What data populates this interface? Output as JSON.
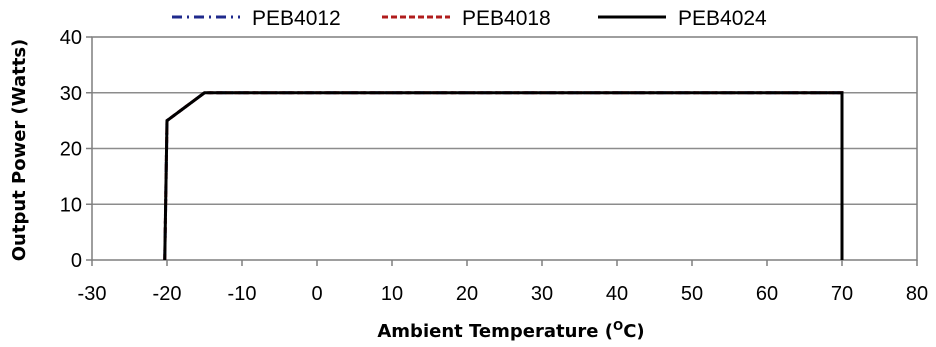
{
  "chart_data": {
    "type": "line",
    "xlabel": "Ambient Temperature (",
    "xlabel_sup": "O",
    "xlabel_end": "C)",
    "ylabel": "Output Power (Watts)",
    "xlim": [
      -30,
      80
    ],
    "ylim": [
      0,
      40
    ],
    "x_ticks": [
      -30,
      -20,
      -10,
      0,
      10,
      20,
      30,
      40,
      50,
      60,
      70,
      80
    ],
    "y_ticks": [
      0,
      10,
      20,
      30,
      40
    ],
    "grid": "horizontal",
    "legend_position": "top",
    "series": [
      {
        "name": "PEB4012",
        "color": "#1f2a8c",
        "dash": "dash-dot",
        "x": [
          -20.3,
          -20,
          -15,
          70,
          70
        ],
        "y": [
          0,
          25,
          30,
          30,
          0
        ]
      },
      {
        "name": "PEB4018",
        "color": "#b01c1c",
        "dash": "dashed",
        "x": [
          -20.3,
          -20,
          -15,
          70,
          70
        ],
        "y": [
          0,
          25,
          30,
          30,
          0
        ]
      },
      {
        "name": "PEB4024",
        "color": "#000000",
        "dash": "solid",
        "x": [
          -20.3,
          -20,
          -15,
          70,
          70
        ],
        "y": [
          0,
          25,
          30,
          30,
          0
        ]
      }
    ]
  }
}
